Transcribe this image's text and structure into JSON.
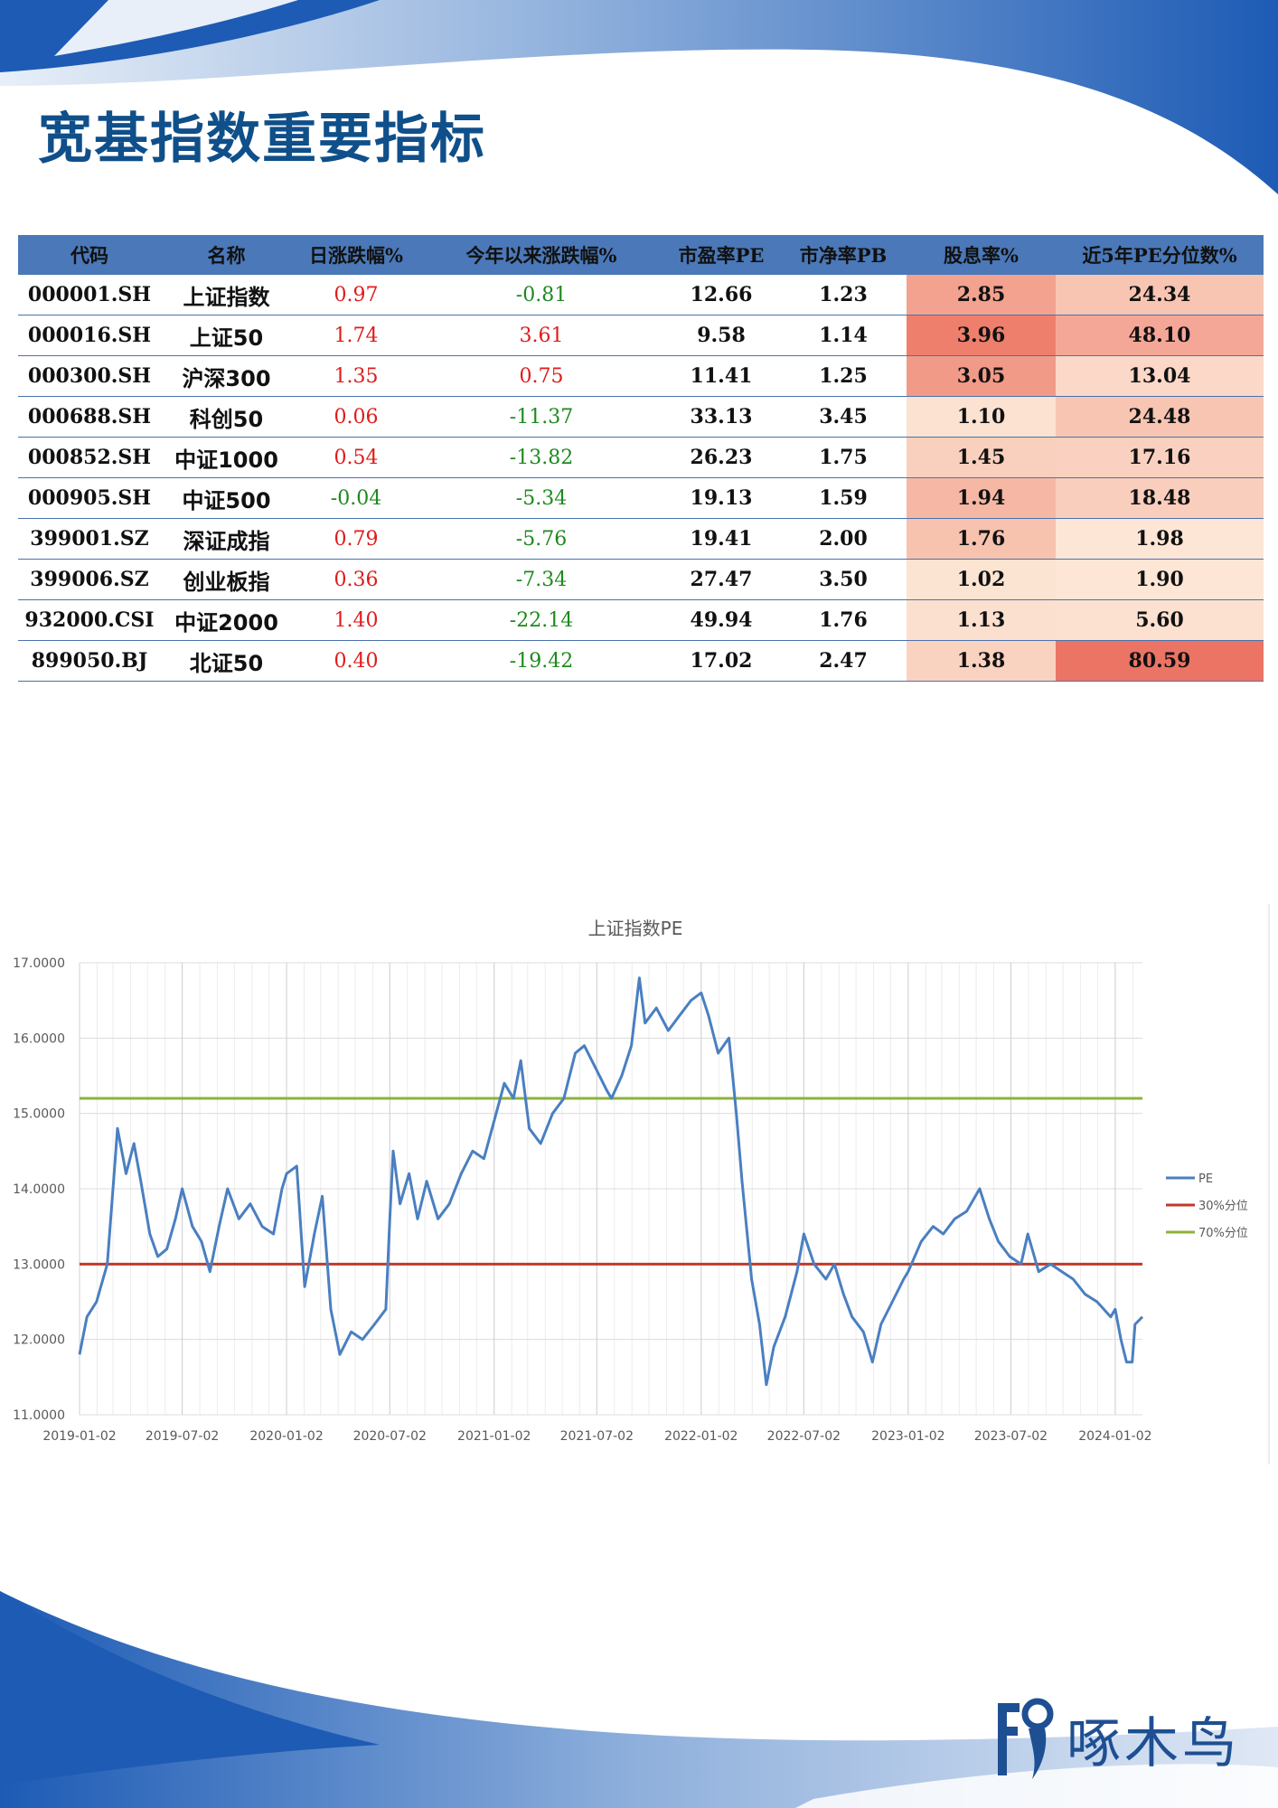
{
  "title": "宽基指数重要指标",
  "table": {
    "headers": [
      "代码",
      "名称",
      "日涨跌幅%",
      "今年以来涨跌幅%",
      "市盈率PE",
      "市净率PB",
      "股息率%",
      "近5年PE分位数%"
    ],
    "rows": [
      {
        "code": "000001.SH",
        "name": "上证指数",
        "daily": "0.97",
        "daily_dir": "red",
        "ytd": "-0.81",
        "ytd_dir": "green",
        "pe": "12.66",
        "pb": "1.23",
        "dy": "2.85",
        "dy_color": "#f3a290",
        "pct": "24.34",
        "pct_color": "#f8c5b3"
      },
      {
        "code": "000016.SH",
        "name": "上证50",
        "daily": "1.74",
        "daily_dir": "red",
        "ytd": "3.61",
        "ytd_dir": "red",
        "pe": "9.58",
        "pb": "1.14",
        "dy": "3.96",
        "dy_color": "#ee7f6c",
        "pct": "48.10",
        "pct_color": "#f5a797"
      },
      {
        "code": "000300.SH",
        "name": "沪深300",
        "daily": "1.35",
        "daily_dir": "red",
        "ytd": "0.75",
        "ytd_dir": "red",
        "pe": "11.41",
        "pb": "1.25",
        "dy": "3.05",
        "dy_color": "#f29a88",
        "pct": "13.04",
        "pct_color": "#fbd8c8"
      },
      {
        "code": "000688.SH",
        "name": "科创50",
        "daily": "0.06",
        "daily_dir": "red",
        "ytd": "-11.37",
        "ytd_dir": "green",
        "pe": "33.13",
        "pb": "3.45",
        "dy": "1.10",
        "dy_color": "#fce2d1",
        "pct": "24.48",
        "pct_color": "#f8c5b3"
      },
      {
        "code": "000852.SH",
        "name": "中证1000",
        "daily": "0.54",
        "daily_dir": "red",
        "ytd": "-13.82",
        "ytd_dir": "green",
        "pe": "26.23",
        "pb": "1.75",
        "dy": "1.45",
        "dy_color": "#f9cfbd",
        "pct": "17.16",
        "pct_color": "#fad1c0"
      },
      {
        "code": "000905.SH",
        "name": "中证500",
        "daily": "-0.04",
        "daily_dir": "green",
        "ytd": "-5.34",
        "ytd_dir": "green",
        "pe": "19.13",
        "pb": "1.59",
        "dy": "1.94",
        "dy_color": "#f6b8a5",
        "pct": "18.48",
        "pct_color": "#facebd"
      },
      {
        "code": "399001.SZ",
        "name": "深证成指",
        "daily": "0.79",
        "daily_dir": "red",
        "ytd": "-5.76",
        "ytd_dir": "green",
        "pe": "19.41",
        "pb": "2.00",
        "dy": "1.76",
        "dy_color": "#f7c2ae",
        "pct": "1.98",
        "pct_color": "#fde6d6"
      },
      {
        "code": "399006.SZ",
        "name": "创业板指",
        "daily": "0.36",
        "daily_dir": "red",
        "ytd": "-7.34",
        "ytd_dir": "green",
        "pe": "27.47",
        "pb": "3.50",
        "dy": "1.02",
        "dy_color": "#fce4d3",
        "pct": "1.90",
        "pct_color": "#fde6d6"
      },
      {
        "code": "932000.CSI",
        "name": "中证2000",
        "daily": "1.40",
        "daily_dir": "red",
        "ytd": "-22.14",
        "ytd_dir": "green",
        "pe": "49.94",
        "pb": "1.76",
        "dy": "1.13",
        "dy_color": "#fce0cf",
        "pct": "5.60",
        "pct_color": "#fce1d1"
      },
      {
        "code": "899050.BJ",
        "name": "北证50",
        "daily": "0.40",
        "daily_dir": "red",
        "ytd": "-19.42",
        "ytd_dir": "green",
        "pe": "17.02",
        "pb": "2.47",
        "dy": "1.38",
        "dy_color": "#fad2c0",
        "pct": "80.59",
        "pct_color": "#ec7465"
      }
    ]
  },
  "chart_data": {
    "type": "line",
    "title": "上证指数PE",
    "xlabel": "",
    "ylabel": "",
    "ylim": [
      11,
      17
    ],
    "yticks": [
      "11.0000",
      "12.0000",
      "13.0000",
      "14.0000",
      "15.0000",
      "16.0000",
      "17.0000"
    ],
    "xticks": [
      "2019-01-02",
      "2019-07-02",
      "2020-01-02",
      "2020-07-02",
      "2021-01-02",
      "2021-07-02",
      "2022-01-02",
      "2022-07-02",
      "2023-01-02",
      "2023-07-02",
      "2024-01-02"
    ],
    "grid": true,
    "legend": "right",
    "series": [
      {
        "name": "PE",
        "color": "#4a7fc1",
        "points": [
          [
            "2019-01-02",
            11.8
          ],
          [
            "2019-01-15",
            12.3
          ],
          [
            "2019-02-01",
            12.5
          ],
          [
            "2019-02-20",
            13.0
          ],
          [
            "2019-03-05",
            14.3
          ],
          [
            "2019-03-10",
            14.8
          ],
          [
            "2019-03-25",
            14.2
          ],
          [
            "2019-04-08",
            14.6
          ],
          [
            "2019-04-20",
            14.1
          ],
          [
            "2019-05-06",
            13.4
          ],
          [
            "2019-05-20",
            13.1
          ],
          [
            "2019-06-05",
            13.2
          ],
          [
            "2019-06-20",
            13.6
          ],
          [
            "2019-07-02",
            14.0
          ],
          [
            "2019-07-20",
            13.5
          ],
          [
            "2019-08-05",
            13.3
          ],
          [
            "2019-08-20",
            12.9
          ],
          [
            "2019-09-05",
            13.5
          ],
          [
            "2019-09-20",
            14.0
          ],
          [
            "2019-10-10",
            13.6
          ],
          [
            "2019-10-30",
            13.8
          ],
          [
            "2019-11-20",
            13.5
          ],
          [
            "2019-12-10",
            13.4
          ],
          [
            "2019-12-25",
            14.0
          ],
          [
            "2020-01-02",
            14.2
          ],
          [
            "2020-01-20",
            14.3
          ],
          [
            "2020-02-03",
            12.7
          ],
          [
            "2020-02-20",
            13.4
          ],
          [
            "2020-03-05",
            13.9
          ],
          [
            "2020-03-20",
            12.4
          ],
          [
            "2020-04-05",
            11.8
          ],
          [
            "2020-04-25",
            12.1
          ],
          [
            "2020-05-15",
            12.0
          ],
          [
            "2020-06-05",
            12.2
          ],
          [
            "2020-06-25",
            12.4
          ],
          [
            "2020-07-02",
            13.6
          ],
          [
            "2020-07-08",
            14.5
          ],
          [
            "2020-07-20",
            13.8
          ],
          [
            "2020-08-05",
            14.2
          ],
          [
            "2020-08-20",
            13.6
          ],
          [
            "2020-09-05",
            14.1
          ],
          [
            "2020-09-25",
            13.6
          ],
          [
            "2020-10-15",
            13.8
          ],
          [
            "2020-11-05",
            14.2
          ],
          [
            "2020-11-25",
            14.5
          ],
          [
            "2020-12-15",
            14.4
          ],
          [
            "2021-01-02",
            14.9
          ],
          [
            "2021-01-20",
            15.4
          ],
          [
            "2021-02-05",
            15.2
          ],
          [
            "2021-02-18",
            15.7
          ],
          [
            "2021-03-05",
            14.8
          ],
          [
            "2021-03-25",
            14.6
          ],
          [
            "2021-04-15",
            15.0
          ],
          [
            "2021-05-05",
            15.2
          ],
          [
            "2021-05-25",
            15.8
          ],
          [
            "2021-06-10",
            15.9
          ],
          [
            "2021-06-30",
            15.6
          ],
          [
            "2021-07-20",
            15.3
          ],
          [
            "2021-07-28",
            15.2
          ],
          [
            "2021-08-15",
            15.5
          ],
          [
            "2021-09-01",
            15.9
          ],
          [
            "2021-09-15",
            16.8
          ],
          [
            "2021-09-25",
            16.2
          ],
          [
            "2021-10-15",
            16.4
          ],
          [
            "2021-11-05",
            16.1
          ],
          [
            "2021-11-25",
            16.3
          ],
          [
            "2021-12-15",
            16.5
          ],
          [
            "2022-01-02",
            16.6
          ],
          [
            "2022-01-15",
            16.3
          ],
          [
            "2022-02-01",
            15.8
          ],
          [
            "2022-02-20",
            16.0
          ],
          [
            "2022-03-05",
            15.0
          ],
          [
            "2022-03-15",
            14.1
          ],
          [
            "2022-04-01",
            12.8
          ],
          [
            "2022-04-15",
            12.2
          ],
          [
            "2022-04-27",
            11.4
          ],
          [
            "2022-05-10",
            11.9
          ],
          [
            "2022-05-30",
            12.3
          ],
          [
            "2022-06-20",
            12.9
          ],
          [
            "2022-07-02",
            13.4
          ],
          [
            "2022-07-20",
            13.0
          ],
          [
            "2022-08-10",
            12.8
          ],
          [
            "2022-08-25",
            13.0
          ],
          [
            "2022-09-10",
            12.6
          ],
          [
            "2022-09-25",
            12.3
          ],
          [
            "2022-10-15",
            12.1
          ],
          [
            "2022-10-31",
            11.7
          ],
          [
            "2022-11-15",
            12.2
          ],
          [
            "2022-12-05",
            12.5
          ],
          [
            "2022-12-25",
            12.8
          ],
          [
            "2023-01-02",
            12.9
          ],
          [
            "2023-01-25",
            13.3
          ],
          [
            "2023-02-15",
            13.5
          ],
          [
            "2023-03-05",
            13.4
          ],
          [
            "2023-03-25",
            13.6
          ],
          [
            "2023-04-15",
            13.7
          ],
          [
            "2023-05-08",
            14.0
          ],
          [
            "2023-05-25",
            13.6
          ],
          [
            "2023-06-10",
            13.3
          ],
          [
            "2023-06-30",
            13.1
          ],
          [
            "2023-07-20",
            13.0
          ],
          [
            "2023-08-01",
            13.4
          ],
          [
            "2023-08-20",
            12.9
          ],
          [
            "2023-09-10",
            13.0
          ],
          [
            "2023-09-30",
            12.9
          ],
          [
            "2023-10-20",
            12.8
          ],
          [
            "2023-11-10",
            12.6
          ],
          [
            "2023-12-01",
            12.5
          ],
          [
            "2023-12-25",
            12.3
          ],
          [
            "2024-01-02",
            12.4
          ],
          [
            "2024-01-12",
            12.0
          ],
          [
            "2024-01-22",
            11.7
          ],
          [
            "2024-02-01",
            11.7
          ],
          [
            "2024-02-06",
            12.2
          ],
          [
            "2024-02-19",
            12.3
          ]
        ]
      },
      {
        "name": "30%分位",
        "color": "#c0392b",
        "value": 13.0
      },
      {
        "name": "70%分位",
        "color": "#8db33a",
        "value": 15.2
      }
    ]
  },
  "logo": {
    "text": "啄木鸟",
    "color": "#1e4f92"
  }
}
